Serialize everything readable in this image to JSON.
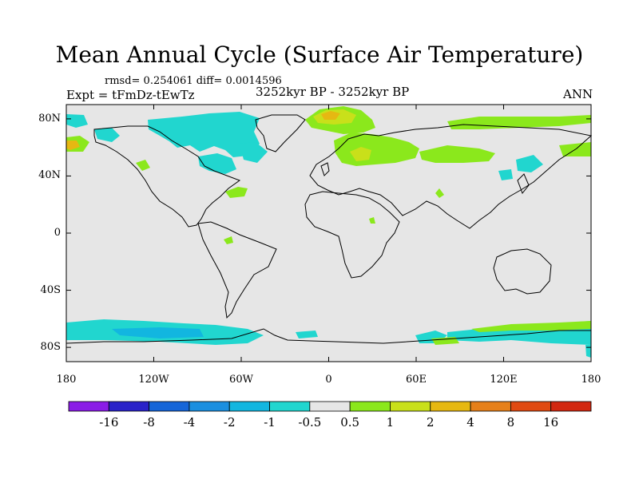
{
  "title": "Mean Annual Cycle (Surface Air Temperature)",
  "stats_text": "rmsd= 0.254061 diff= 0.0014596",
  "experiment_text": "Expt = tFmDz-tEwTz",
  "period_text": "3252kyr BP - 3252kyr BP",
  "season_text": "ANN",
  "map": {
    "lat_labels": [
      "80N",
      "40N",
      "0",
      "40S",
      "80S"
    ],
    "lat_values": [
      80,
      40,
      0,
      -40,
      -80
    ],
    "lon_labels": [
      "180",
      "120W",
      "60W",
      "0",
      "60E",
      "120E",
      "180"
    ],
    "lon_values": [
      -180,
      -120,
      -60,
      0,
      60,
      120,
      180
    ],
    "lat_range": [
      -90,
      90
    ],
    "lon_range": [
      -180,
      180
    ]
  },
  "colorbar": {
    "labels": [
      "-16",
      "-8",
      "-4",
      "-2",
      "-1",
      "-0.5",
      "0.5",
      "1",
      "2",
      "4",
      "8",
      "16"
    ],
    "colors": [
      "#8a1ce6",
      "#2a23c9",
      "#1565d8",
      "#1b8fe0",
      "#12b6e0",
      "#21d6cf",
      "#e6e6e6",
      "#8be81c",
      "#c9e01a",
      "#e6b812",
      "#e6801a",
      "#e04a12",
      "#d22810"
    ]
  },
  "colors": {
    "background": "#e6e6e6",
    "coast": "#000000"
  }
}
